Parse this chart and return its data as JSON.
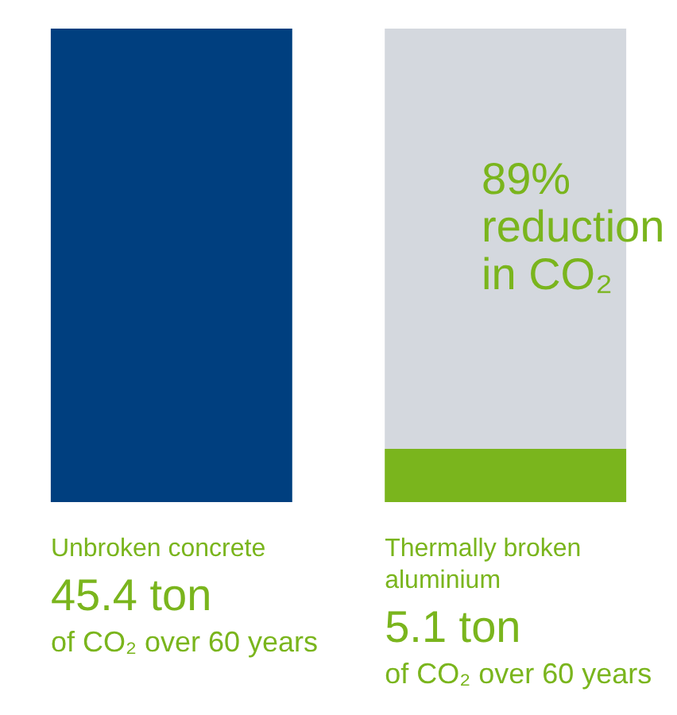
{
  "chart_data": {
    "type": "bar",
    "stacked": true,
    "categories": [
      "Unbroken concrete",
      "Thermally broken aluminium"
    ],
    "series": [
      {
        "colors": [
          "#003f7f",
          "#7ab51d"
        ],
        "values": [
          45.4,
          5.1
        ],
        "value_labels": [
          "45.4 ton",
          "5.1 ton"
        ]
      },
      {
        "color": "#d4d8de",
        "values": [
          null,
          40.3
        ]
      }
    ],
    "annotations": [
      "89% reduction in CO₂",
      "of CO₂ over 60 years",
      "of CO₂ over 60 years"
    ]
  }
}
